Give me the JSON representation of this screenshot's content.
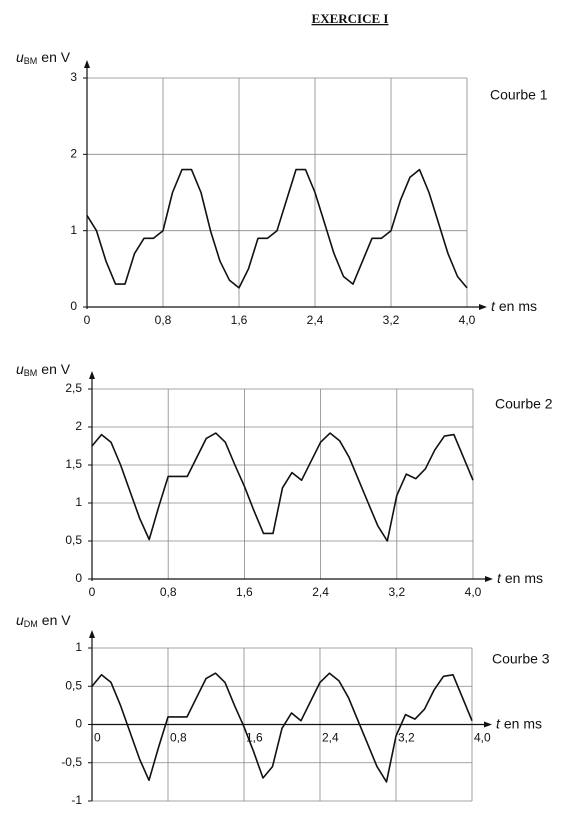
{
  "header": {
    "title": "EXERCICE I"
  },
  "chart_data": [
    {
      "type": "line",
      "annotation": "Courbe 1",
      "ylabel": {
        "symbol": "u",
        "subscript": "BM",
        "unit": "en V"
      },
      "xlabel": {
        "symbol": "t",
        "unit": "en ms"
      },
      "x": [
        0,
        0.1,
        0.2,
        0.3,
        0.4,
        0.5,
        0.6,
        0.7,
        0.8,
        0.9,
        1.0,
        1.1,
        1.2,
        1.3,
        1.4,
        1.5,
        1.6,
        1.7,
        1.8,
        1.9,
        2.0,
        2.1,
        2.2,
        2.3,
        2.4,
        2.5,
        2.6,
        2.7,
        2.8,
        2.9,
        3.0,
        3.1,
        3.2,
        3.3,
        3.4,
        3.5,
        3.6,
        3.7,
        3.8,
        3.9,
        4.0
      ],
      "series": [
        {
          "color": "#111111",
          "values": [
            1.2,
            1.0,
            0.6,
            0.3,
            0.3,
            0.7,
            0.9,
            0.9,
            1.0,
            1.5,
            1.8,
            1.8,
            1.5,
            1.0,
            0.6,
            0.35,
            0.25,
            0.5,
            0.9,
            0.9,
            1.0,
            1.4,
            1.8,
            1.8,
            1.5,
            1.1,
            0.7,
            0.4,
            0.3,
            0.6,
            0.9,
            0.9,
            1.0,
            1.4,
            1.7,
            1.8,
            1.5,
            1.1,
            0.7,
            0.4,
            0.25
          ]
        }
      ],
      "xlim": [
        0,
        4.0
      ],
      "ylim": [
        0,
        3
      ],
      "xticks": [
        0,
        {
          "value": 0.8,
          "label": "0,8"
        },
        {
          "value": 1.6,
          "label": "1,6"
        },
        {
          "value": 2.4,
          "label": "2,4"
        },
        {
          "value": 3.2,
          "label": "3,2"
        },
        {
          "value": 4.0,
          "label": "4,0"
        }
      ],
      "yticks": [
        0,
        1,
        2,
        3
      ],
      "grid": true
    },
    {
      "type": "line",
      "annotation": "Courbe 2",
      "ylabel": {
        "symbol": "u",
        "subscript": "BM",
        "unit": "en V"
      },
      "xlabel": {
        "symbol": "t",
        "unit": "en ms"
      },
      "x": [
        0,
        0.1,
        0.2,
        0.3,
        0.4,
        0.5,
        0.6,
        0.7,
        0.8,
        0.9,
        1.0,
        1.1,
        1.2,
        1.3,
        1.4,
        1.5,
        1.6,
        1.7,
        1.8,
        1.9,
        2.0,
        2.1,
        2.2,
        2.3,
        2.4,
        2.5,
        2.6,
        2.7,
        2.8,
        2.9,
        3.0,
        3.1,
        3.2,
        3.3,
        3.4,
        3.5,
        3.6,
        3.7,
        3.8,
        3.9,
        4.0
      ],
      "series": [
        {
          "color": "#111111",
          "values": [
            1.75,
            1.9,
            1.8,
            1.5,
            1.15,
            0.8,
            0.52,
            0.95,
            1.35,
            1.35,
            1.35,
            1.6,
            1.85,
            1.92,
            1.8,
            1.5,
            1.22,
            0.9,
            0.6,
            0.6,
            1.2,
            1.4,
            1.3,
            1.55,
            1.8,
            1.92,
            1.82,
            1.6,
            1.3,
            1.0,
            0.7,
            0.5,
            1.1,
            1.38,
            1.32,
            1.45,
            1.7,
            1.88,
            1.9,
            1.6,
            1.3
          ]
        }
      ],
      "xlim": [
        0,
        4.0
      ],
      "ylim": [
        0,
        2.5
      ],
      "xticks": [
        0,
        {
          "value": 0.8,
          "label": "0,8"
        },
        {
          "value": 1.6,
          "label": "1,6"
        },
        {
          "value": 2.4,
          "label": "2,4"
        },
        {
          "value": 3.2,
          "label": "3,2"
        },
        {
          "value": 4.0,
          "label": "4,0"
        }
      ],
      "yticks": [
        0,
        {
          "value": 0.5,
          "label": "0,5"
        },
        1,
        {
          "value": 1.5,
          "label": "1,5"
        },
        2,
        {
          "value": 2.5,
          "label": "2,5"
        }
      ],
      "grid": true
    },
    {
      "type": "line",
      "annotation": "Courbe 3",
      "ylabel": {
        "symbol": "u",
        "subscript": "DM",
        "unit": "en V"
      },
      "xlabel": {
        "symbol": "t",
        "unit": "en ms"
      },
      "x": [
        0,
        0.1,
        0.2,
        0.3,
        0.4,
        0.5,
        0.6,
        0.7,
        0.8,
        0.9,
        1.0,
        1.1,
        1.2,
        1.3,
        1.4,
        1.5,
        1.6,
        1.7,
        1.8,
        1.9,
        2.0,
        2.1,
        2.2,
        2.3,
        2.4,
        2.5,
        2.6,
        2.7,
        2.8,
        2.9,
        3.0,
        3.1,
        3.2,
        3.3,
        3.4,
        3.5,
        3.6,
        3.7,
        3.8,
        3.9,
        4.0
      ],
      "series": [
        {
          "color": "#111111",
          "values": [
            0.5,
            0.65,
            0.55,
            0.25,
            -0.1,
            -0.45,
            -0.73,
            -0.3,
            0.1,
            0.1,
            0.1,
            0.35,
            0.6,
            0.67,
            0.55,
            0.25,
            -0.03,
            -0.35,
            -0.7,
            -0.55,
            -0.05,
            0.15,
            0.05,
            0.3,
            0.55,
            0.67,
            0.57,
            0.35,
            0.05,
            -0.25,
            -0.55,
            -0.75,
            -0.15,
            0.13,
            0.07,
            0.2,
            0.45,
            0.63,
            0.65,
            0.35,
            0.05
          ]
        }
      ],
      "xlim": [
        0,
        4.0
      ],
      "ylim": [
        -1,
        1
      ],
      "xticks": [
        0,
        {
          "value": 0.8,
          "label": "0,8"
        },
        {
          "value": 1.6,
          "label": "1,6"
        },
        {
          "value": 2.4,
          "label": "2,4"
        },
        {
          "value": 3.2,
          "label": "3,2"
        },
        {
          "value": 4.0,
          "label": "4,0"
        }
      ],
      "yticks": [
        -1,
        {
          "value": -0.5,
          "label": "-0,5"
        },
        0,
        {
          "value": 0.5,
          "label": "0,5"
        },
        1
      ],
      "grid": true
    }
  ]
}
